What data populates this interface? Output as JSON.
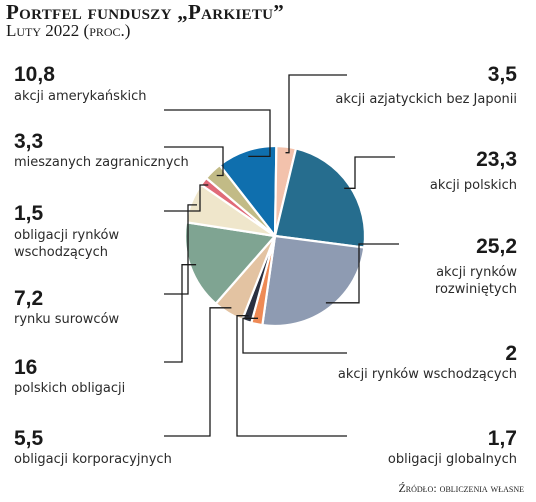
{
  "header": {
    "title": "Portfel funduszy „Parkietu”",
    "subtitle": "Luty 2022 (proc.)"
  },
  "source": "Źródło: obliczenia własne",
  "colors": {
    "akcji_amerykanskich": "#0f6fae",
    "akcji_azjatyckich": "#f3c2ac",
    "akcji_polskich": "#266d8e",
    "akcji_rynkow_rozwinietych": "#8e9bb2",
    "akcji_rynkow_wschodzacych": "#ee8a55",
    "obligacji_globalnych": "#2a3040",
    "obligacji_korporacyjnych": "#e3c3a2",
    "polskich_obligacji": "#7fa492",
    "rynku_surowcow": "#efe6cb",
    "obligacji_rynkow_wschodzacych": "#e06a78",
    "mieszanych_zagranicznych": "#c2bb86"
  },
  "chart_data": {
    "type": "pie",
    "title": "Portfel funduszy „Parkietu”",
    "subtitle": "Luty 2022 (proc.)",
    "slices": [
      {
        "value": 10.8,
        "value_label": "10,8",
        "label": [
          "akcji amerykańskich"
        ],
        "color": "#0f6fae"
      },
      {
        "value": 3.5,
        "value_label": "3,5",
        "label": [
          "akcji azjatyckich bez Japonii"
        ],
        "color": "#f3c2ac"
      },
      {
        "value": 23.3,
        "value_label": "23,3",
        "label": [
          "akcji polskich"
        ],
        "color": "#266d8e"
      },
      {
        "value": 25.2,
        "value_label": "25,2",
        "label": [
          "akcji rynków",
          "rozwiniętych"
        ],
        "color": "#8e9bb2"
      },
      {
        "value": 2,
        "value_label": "2",
        "label": [
          "akcji rynków wschodzących"
        ],
        "color": "#ee8a55"
      },
      {
        "value": 1.7,
        "value_label": "1,7",
        "label": [
          "obligacji globalnych"
        ],
        "color": "#2a3040"
      },
      {
        "value": 5.5,
        "value_label": "5,5",
        "label": [
          "obligacji korporacyjnych"
        ],
        "color": "#e3c3a2"
      },
      {
        "value": 16,
        "value_label": "16",
        "label": [
          "polskich obligacji"
        ],
        "color": "#7fa492"
      },
      {
        "value": 7.2,
        "value_label": "7,2",
        "label": [
          "rynku surowców"
        ],
        "color": "#efe6cb"
      },
      {
        "value": 1.5,
        "value_label": "1,5",
        "label": [
          "obligacji rynków",
          "wschodzących"
        ],
        "color": "#e06a78"
      },
      {
        "value": 3.3,
        "value_label": "3,3",
        "label": [
          "mieszanych zagranicznych"
        ],
        "color": "#c2bb86"
      }
    ]
  }
}
